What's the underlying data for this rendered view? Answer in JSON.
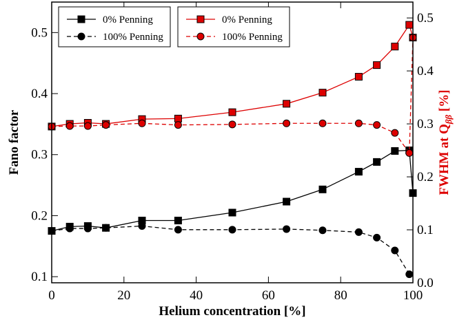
{
  "chart_data": {
    "type": "line",
    "x": [
      0,
      5,
      10,
      15,
      25,
      35,
      50,
      65,
      75,
      85,
      90,
      95,
      99,
      100
    ],
    "xlabel": "Helium concentration [%]",
    "xlim": [
      0,
      100
    ],
    "xticks": [
      0,
      20,
      40,
      60,
      80,
      100
    ],
    "left_axis": {
      "ylabel": "Fano factor",
      "ylim": [
        0.09,
        0.55
      ],
      "yticks": [
        0.1,
        0.2,
        0.3,
        0.4,
        0.5
      ],
      "color": "#000000"
    },
    "right_axis": {
      "ylabel_main": "FWHM at Q",
      "ylabel_sub": "ββ",
      "ylabel_end": " [%]",
      "ylim": [
        0.0,
        0.53
      ],
      "yticks": [
        0.0,
        0.1,
        0.2,
        0.3,
        0.4,
        0.5
      ],
      "color": "#dd0000"
    },
    "grid": false,
    "legends": [
      {
        "placement": "top-left",
        "axis": "left",
        "entries": [
          "0% Penning",
          "100% Penning"
        ]
      },
      {
        "placement": "top-center",
        "axis": "right",
        "entries": [
          "0% Penning",
          "100% Penning"
        ]
      }
    ],
    "series": [
      {
        "name": "0% Penning",
        "axis": "left",
        "color": "#000000",
        "marker": "square",
        "dash": "solid",
        "values": [
          0.175,
          0.182,
          0.183,
          0.18,
          0.192,
          0.192,
          0.205,
          0.223,
          0.243,
          0.272,
          0.288,
          0.306,
          0.307,
          0.237
        ]
      },
      {
        "name": "100% Penning",
        "axis": "left",
        "color": "#000000",
        "marker": "circle",
        "dash": "dashed",
        "values": [
          0.175,
          0.179,
          0.179,
          0.18,
          0.183,
          0.177,
          0.177,
          0.178,
          0.176,
          0.173,
          0.164,
          0.143,
          0.104,
          null
        ]
      },
      {
        "name": "0% Penning",
        "axis": "right",
        "color": "#dd0000",
        "marker": "square",
        "dash": "solid",
        "values": [
          0.295,
          0.3,
          0.302,
          0.3,
          0.309,
          0.31,
          0.322,
          0.338,
          0.359,
          0.389,
          0.411,
          0.446,
          0.487,
          0.463
        ]
      },
      {
        "name": "100% Penning",
        "axis": "right",
        "color": "#dd0000",
        "marker": "circle",
        "dash": "dashed",
        "values": [
          0.295,
          0.296,
          0.296,
          0.298,
          0.301,
          0.298,
          0.299,
          0.301,
          0.301,
          0.301,
          0.298,
          0.283,
          0.245,
          0.463
        ]
      }
    ]
  }
}
